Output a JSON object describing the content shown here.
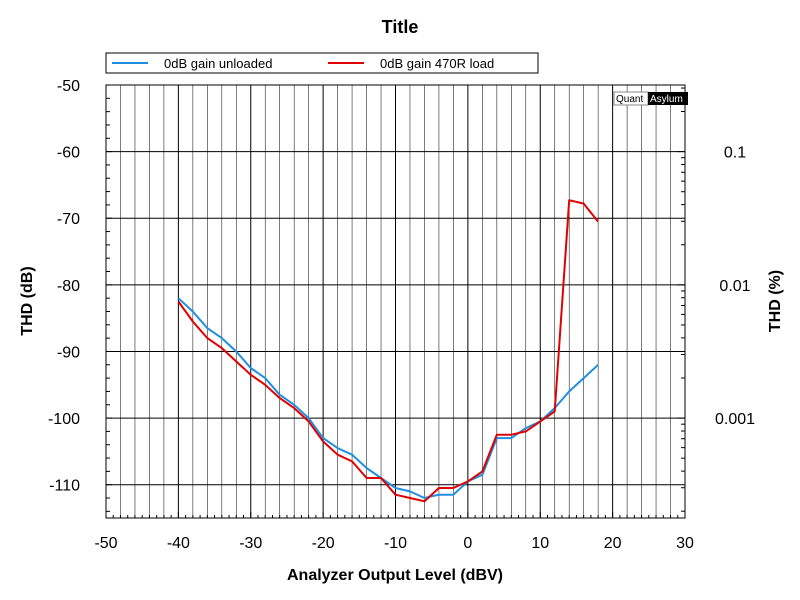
{
  "chart_data": {
    "type": "line",
    "title": "Title",
    "xlabel": "Analyzer Output Level (dBV)",
    "ylabel": "THD (dB)",
    "y2label": "THD (%)",
    "xlim": [
      -50,
      30
    ],
    "ylim": [
      -115,
      -50
    ],
    "x_ticks": [
      -50,
      -40,
      -30,
      -20,
      -10,
      0,
      10,
      20,
      30
    ],
    "y_ticks": [
      -50,
      -60,
      -70,
      -80,
      -90,
      -100,
      -110
    ],
    "y2_ticks": [
      {
        "label": "0.1",
        "db": -60
      },
      {
        "label": "0.01",
        "db": -80
      },
      {
        "label": "0.001",
        "db": -100
      }
    ],
    "grid": true,
    "legend_position": "top",
    "series": [
      {
        "name": "0dB gain unloaded",
        "color": "#1e8fe0",
        "x": [
          -40,
          -38,
          -36,
          -34,
          -32,
          -30,
          -28,
          -26,
          -24,
          -22,
          -20,
          -18,
          -16,
          -14,
          -12,
          -10,
          -8,
          -6,
          -4,
          -2,
          0,
          2,
          4,
          6,
          8,
          10,
          12,
          14,
          16,
          18
        ],
        "y": [
          -82,
          -84,
          -86.5,
          -88,
          -90,
          -92.5,
          -94,
          -96.5,
          -98,
          -100,
          -103,
          -104.5,
          -105.5,
          -107.5,
          -109,
          -110.5,
          -111,
          -112,
          -111.5,
          -111.5,
          -109.5,
          -108.5,
          -103,
          -103,
          -101.5,
          -100.5,
          -98.5,
          -96,
          -94,
          -92
        ]
      },
      {
        "name": "0dB gain 470R load",
        "color": "#e00000",
        "x": [
          -40,
          -38,
          -36,
          -34,
          -32,
          -30,
          -28,
          -26,
          -24,
          -22,
          -20,
          -18,
          -16,
          -14,
          -12,
          -10,
          -8,
          -6,
          -4,
          -2,
          0,
          2,
          4,
          6,
          8,
          10,
          12,
          14,
          16,
          18
        ],
        "y": [
          -82.5,
          -85.5,
          -88,
          -89.5,
          -91.5,
          -93.5,
          -95,
          -97,
          -98.5,
          -100.5,
          -103.5,
          -105.5,
          -106.5,
          -109,
          -109,
          -111.5,
          -112,
          -112.5,
          -110.5,
          -110.5,
          -109.5,
          -108,
          -102.5,
          -102.5,
          -102,
          -100.5,
          -99,
          -67.3,
          -67.8,
          -70.5
        ]
      }
    ]
  },
  "legend": {
    "items": [
      {
        "label": "0dB gain unloaded",
        "color": "#1e8fe0"
      },
      {
        "label": "0dB gain 470R load",
        "color": "#e00000"
      }
    ]
  },
  "branding": {
    "left": "Quant",
    "right": "Asylum"
  }
}
